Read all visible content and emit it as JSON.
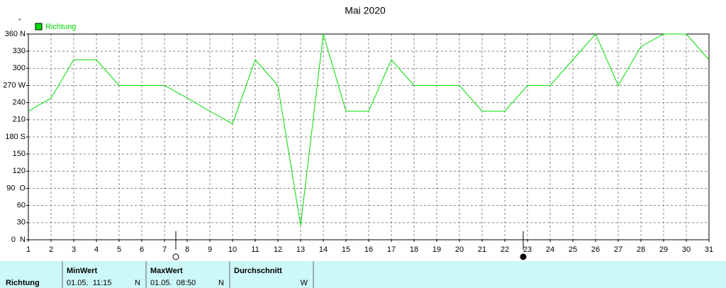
{
  "chart_data": {
    "type": "line",
    "title": "Mai 2020",
    "unit_mark": "°",
    "categories": [
      "1",
      "2",
      "3",
      "4",
      "5",
      "6",
      "7",
      "8",
      "9",
      "10",
      "11",
      "12",
      "13",
      "14",
      "15",
      "16",
      "17",
      "18",
      "19",
      "20",
      "21",
      "22",
      "23",
      "24",
      "25",
      "26",
      "27",
      "28",
      "29",
      "30",
      "31"
    ],
    "series": [
      {
        "name": "Richtung",
        "color": "#00dd00",
        "values": [
          225,
          248,
          315,
          315,
          270,
          270,
          270,
          248,
          225,
          203,
          315,
          270,
          25,
          360,
          225,
          225,
          315,
          270,
          270,
          270,
          225,
          225,
          270,
          270,
          315,
          360,
          270,
          338,
          360,
          360,
          315
        ]
      }
    ],
    "ylim": [
      0,
      360
    ],
    "yticks": [
      {
        "value": 0,
        "label": "0  N"
      },
      30,
      60,
      {
        "value": 90,
        "label": "90  O"
      },
      120,
      150,
      {
        "value": 180,
        "label": "180 S"
      },
      210,
      240,
      {
        "value": 270,
        "label": "270 W"
      },
      300,
      330,
      {
        "value": 360,
        "label": "360 N"
      }
    ],
    "grid": true,
    "legend": "top-left"
  },
  "table": {
    "row_label": "Richtung",
    "columns": [
      {
        "header": "MinWert",
        "time": "01.05.  11:15",
        "direction": "N"
      },
      {
        "header": "MaxWert",
        "time": "01.05.  08:50",
        "direction": "N"
      },
      {
        "header": "Durchschnitt",
        "direction": "W"
      }
    ]
  }
}
